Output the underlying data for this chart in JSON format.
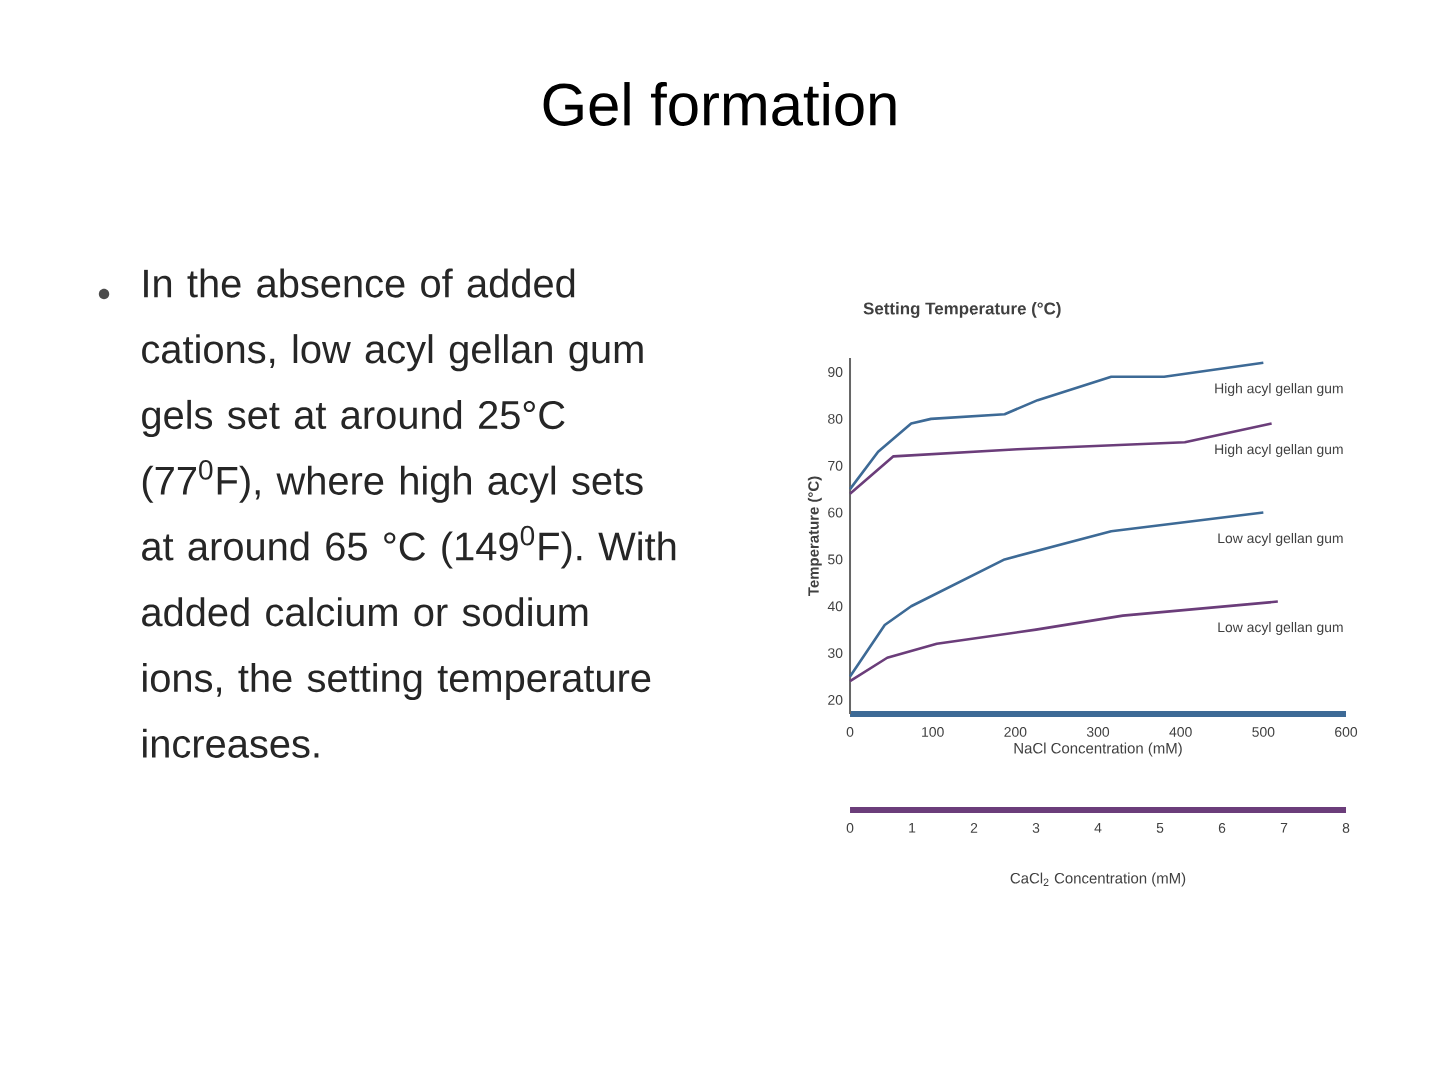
{
  "chart_data": {
    "type": "line",
    "title": "Gel formation",
    "subtitle": "Setting Temperature (°C)",
    "annotations": [
      "In the absence of added cations, low acyl gellan gum gels set at around 25°C (77$^{0}$F), where high acyl sets at around 65 °C (149$^{0}$F). With added calcium or sodium ions, the setting temperature increases."
    ],
    "xlabel": "NaCl Concentration (mM)",
    "x2label": "CaCl$_{2}$ Concentration (mM)",
    "ylabel": "Temperature (°C)",
    "xlim": [
      0,
      600
    ],
    "xticks": [
      0,
      100,
      200,
      300,
      400,
      500,
      600
    ],
    "x2lim": [
      0,
      8
    ],
    "x2ticks": [
      0,
      1,
      2,
      3,
      4,
      5,
      6,
      7,
      8
    ],
    "ylim": [
      17,
      93
    ],
    "yticks": [
      20,
      30,
      40,
      50,
      60,
      70,
      80,
      90
    ],
    "series": [
      {
        "name": "High acyl gellan gum",
        "color": "#3d6a96",
        "x": [
          0,
          34,
          74,
          98,
          187,
          227,
          316,
          380,
          500
        ],
        "values": [
          65,
          73,
          79,
          80,
          81,
          84,
          89,
          89,
          92
        ]
      },
      {
        "name": "High acyl gellan gum",
        "color": "#6b3d7a",
        "axis": "x2",
        "x": [
          0,
          0.7,
          2.7,
          5.4,
          6.8
        ],
        "values": [
          64,
          72,
          73.5,
          75,
          79
        ]
      },
      {
        "name": "Low acyl gellan gum",
        "color": "#3d6a96",
        "x": [
          0,
          42,
          74,
          187,
          316,
          500
        ],
        "values": [
          25,
          36,
          40,
          50,
          56,
          60
        ]
      },
      {
        "name": "Low acyl gellan gum",
        "color": "#6b3d7a",
        "axis": "x2",
        "x": [
          0,
          0.6,
          1.4,
          3,
          4.4,
          6.9
        ],
        "values": [
          24,
          29,
          32,
          35,
          38,
          41
        ]
      }
    ]
  }
}
